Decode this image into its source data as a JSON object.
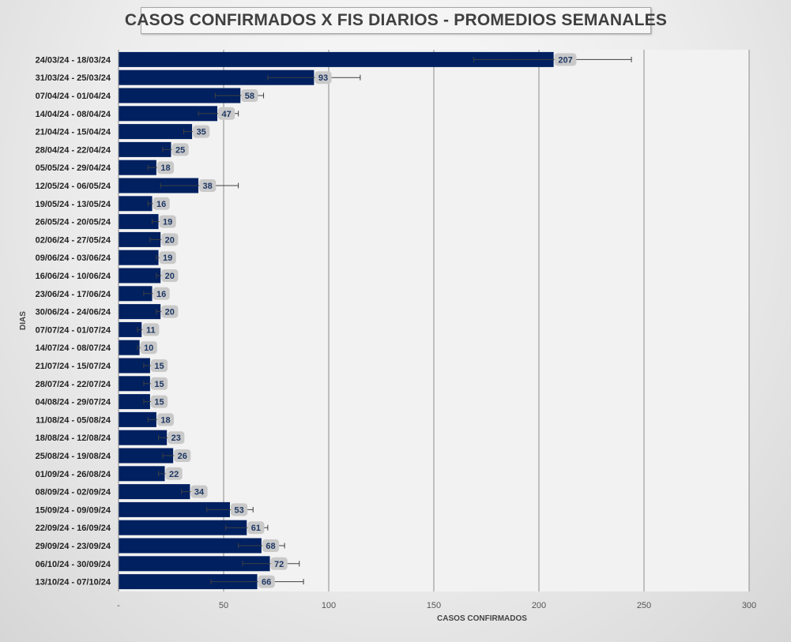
{
  "chart_data": {
    "type": "bar",
    "orientation": "horizontal",
    "title": "CASOS CONFIRMADOS X FIS DIARIOS - PROMEDIOS SEMANALES",
    "xlabel": "CASOS CONFIRMADOS",
    "ylabel": "DIAS",
    "xlim": [
      0,
      300
    ],
    "x_ticks": [
      "-",
      "50",
      "100",
      "150",
      "200",
      "250",
      "300"
    ],
    "grid": "vertical",
    "legend": "none",
    "bar_color": "#002060",
    "categories": [
      "24/03/24 - 18/03/24",
      "31/03/24 - 25/03/24",
      "07/04/24 - 01/04/24",
      "14/04/24 - 08/04/24",
      "21/04/24 - 15/04/24",
      "28/04/24 - 22/04/24",
      "05/05/24 - 29/04/24",
      "12/05/24 - 06/05/24",
      "19/05/24 - 13/05/24",
      "26/05/24 - 20/05/24",
      "02/06/24 - 27/05/24",
      "09/06/24 - 03/06/24",
      "16/06/24 - 10/06/24",
      "23/06/24 - 17/06/24",
      "30/06/24 - 24/06/24",
      "07/07/24 - 01/07/24",
      "14/07/24 - 08/07/24",
      "21/07/24 - 15/07/24",
      "28/07/24 - 22/07/24",
      "04/08/24 - 29/07/24",
      "11/08/24 - 05/08/24",
      "18/08/24 - 12/08/24",
      "25/08/24 - 19/08/24",
      "01/09/24 - 26/08/24",
      "08/09/24 - 02/09/24",
      "15/09/24 - 09/09/24",
      "22/09/24 - 16/09/24",
      "29/09/24 - 23/09/24",
      "06/10/24 - 30/09/24",
      "13/10/24 - 07/10/24"
    ],
    "values": [
      207,
      93,
      58,
      47,
      35,
      25,
      18,
      38,
      16,
      19,
      20,
      19,
      20,
      16,
      20,
      11,
      10,
      15,
      15,
      15,
      18,
      23,
      26,
      22,
      34,
      53,
      61,
      68,
      72,
      66
    ],
    "error_low": [
      169,
      71,
      46,
      38,
      31,
      21,
      14,
      20,
      14,
      16,
      15,
      18,
      18,
      12,
      18,
      9,
      9,
      12,
      12,
      12,
      14,
      19,
      21,
      19,
      30,
      42,
      51,
      57,
      59,
      44
    ],
    "error_high": [
      244,
      115,
      69,
      57,
      39,
      29,
      22,
      57,
      18,
      22,
      25,
      21,
      23,
      20,
      22,
      13,
      11,
      17,
      17,
      17,
      21,
      27,
      31,
      25,
      38,
      64,
      71,
      79,
      86,
      88
    ]
  }
}
